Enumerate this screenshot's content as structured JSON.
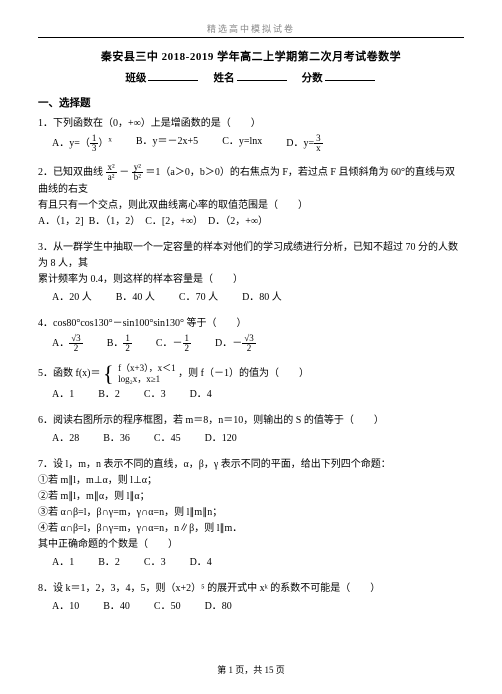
{
  "header": {
    "label": "精选高中模拟试卷"
  },
  "title": "秦安县三中 2018-2019 学年高二上学期第二次月考试卷数学",
  "subhead": {
    "class_lbl": "班级",
    "name_lbl": "姓名",
    "score_lbl": "分数"
  },
  "section1": "一、选择题",
  "q1": {
    "stem": "1．下列函数在（0，+∞）上是增函数的是（　　）",
    "A_pre": "A．y=（",
    "A_post": "）",
    "A_num": "1",
    "A_den": "3",
    "A_exp": "x",
    "B": "B．y＝－2x+5",
    "C": "C．y=lnx",
    "D_pre": "D．y=",
    "D_num": "3",
    "D_den": "x"
  },
  "q2": {
    "stem_pre": "2．已知双曲线 ",
    "f1_num": "x²",
    "f1_den": "a²",
    "minus": "－",
    "f2_num": "y²",
    "f2_den": "b²",
    "stem_post": "＝1（a＞0，b＞0）的右焦点为 F，若过点 F 且倾斜角为 60°的直线与双曲线的右支",
    "line2": "有且只有一个交点，则此双曲线离心率的取值范围是（　　）",
    "A": "A．（1，2]",
    "B": "B．（1，2）",
    "C": "C．[2，+∞）",
    "D": "D．（2，+∞）"
  },
  "q3": {
    "line1": "3．从一群学生中抽取一个一定容量的样本对他们的学习成绩进行分析，已知不超过 70 分的人数为 8 人，其",
    "line2": "累计频率为 0.4，则这样的样本容量是（　　）",
    "A": "A．20 人",
    "B": "B．40 人",
    "C": "C．70 人",
    "D": "D．80 人"
  },
  "q4": {
    "stem": "4．cos80°cos130°－sin100°sin130° 等于（　　）",
    "A_pre": "A．",
    "A_num": "√3",
    "A_den": "2",
    "B_pre": "B．",
    "B_num": "1",
    "B_den": "2",
    "C_pre": "C．－",
    "C_num": "1",
    "C_den": "2",
    "D_pre": "D．－",
    "D_num": "√3",
    "D_den": "2"
  },
  "q5": {
    "pre": "5．函数 f(x)＝",
    "p1": "f（x+3），x＜1",
    "p2": "log₂x，x≥1",
    "post": "，则 f（－1）的值为（　　）",
    "A": "A．1",
    "B": "B．2",
    "C": "C．3",
    "D": "D．4"
  },
  "q6": {
    "stem": "6．阅读右图所示的程序框图，若 m＝8，n＝10，则输出的 S 的值等于（　　）",
    "A": "A．28",
    "B": "B．36",
    "C": "C．45",
    "D": "D．120"
  },
  "q7": {
    "stem": "7．设 l，m，n 表示不同的直线，α，β，γ 表示不同的平面，给出下列四个命题：",
    "p1": "①若 m∥l，m⊥α，则 l⊥α；",
    "p2": "②若 m∥l，m∥α，则 l∥α；",
    "p3": "③若 α∩β=l，β∩γ=m，γ∩α=n，则 l∥m∥n；",
    "p4": "④若 α∩β=l，β∩γ=m，γ∩α=n，n∥β，则 l∥m．",
    "end": "其中正确命题的个数是（　　）",
    "A": "A．1",
    "B": "B．2",
    "C": "C．3",
    "D": "D．4"
  },
  "q8": {
    "stem": "8．设 k＝1，2，3，4，5，则（x+2）⁵ 的展开式中 xᵏ 的系数不可能是（　　）",
    "A": "A．10",
    "B": "B．40",
    "C": "C．50",
    "D": "D．80"
  },
  "footer": "第 1 页，共 15 页"
}
